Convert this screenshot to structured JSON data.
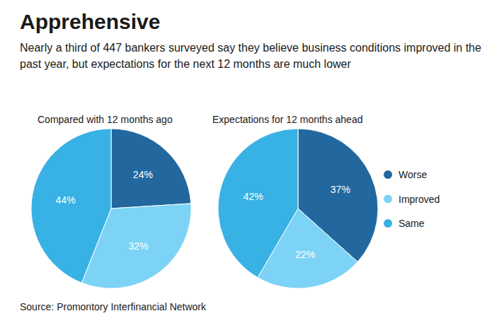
{
  "title": "Apprehensive",
  "subtitle": "Nearly a third of 447 bankers surveyed say they believe business conditions improved in the past year, but expectations for the next 12 months are much lower",
  "source": "Source: Promontory Interfinancial Network",
  "chart_data": [
    {
      "type": "pie",
      "title": "Compared with 12 months ago",
      "categories": [
        "Worse",
        "Improved",
        "Same"
      ],
      "values": [
        24,
        32,
        44
      ],
      "value_labels": [
        "24%",
        "32%",
        "44%"
      ],
      "colors": [
        "#22689f",
        "#7dd3f5",
        "#38b1e4"
      ],
      "data_labels": true
    },
    {
      "type": "pie",
      "title": "Expectations for 12 months ahead",
      "categories": [
        "Worse",
        "Improved",
        "Same"
      ],
      "values": [
        37,
        22,
        42
      ],
      "value_labels": [
        "37%",
        "22%",
        "42%"
      ],
      "colors": [
        "#22689f",
        "#7dd3f5",
        "#38b1e4"
      ],
      "data_labels": true,
      "legend": "right"
    }
  ]
}
